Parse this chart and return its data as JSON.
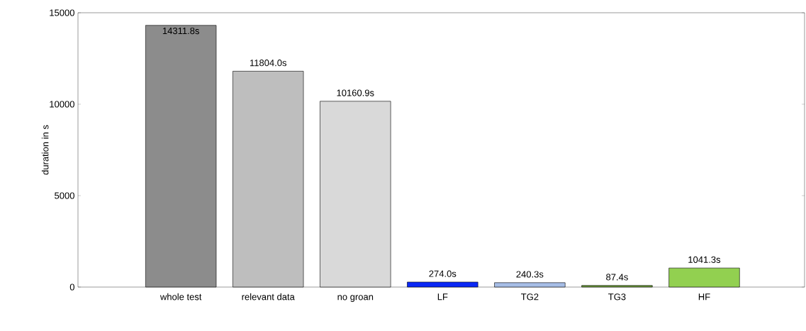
{
  "chart_data": {
    "type": "bar",
    "ylabel": "duration in s",
    "categories": [
      "whole test",
      "relevant data",
      "no groan",
      "LF",
      "TG2",
      "TG3",
      "HF"
    ],
    "values": [
      14311.8,
      11804.0,
      10160.9,
      274.0,
      240.3,
      87.4,
      1041.3
    ],
    "value_labels": [
      "14311.8s",
      "11804.0s",
      "10160.9s",
      "274.0s",
      "240.3s",
      "87.4s",
      "1041.3s"
    ],
    "colors": [
      "#8c8c8c",
      "#bebebe",
      "#d9d9d9",
      "#0a28f5",
      "#a6bde6",
      "#6e9e3c",
      "#92d050"
    ],
    "ylim": [
      0,
      15000
    ],
    "yticks": [
      0,
      5000,
      10000,
      15000
    ]
  }
}
